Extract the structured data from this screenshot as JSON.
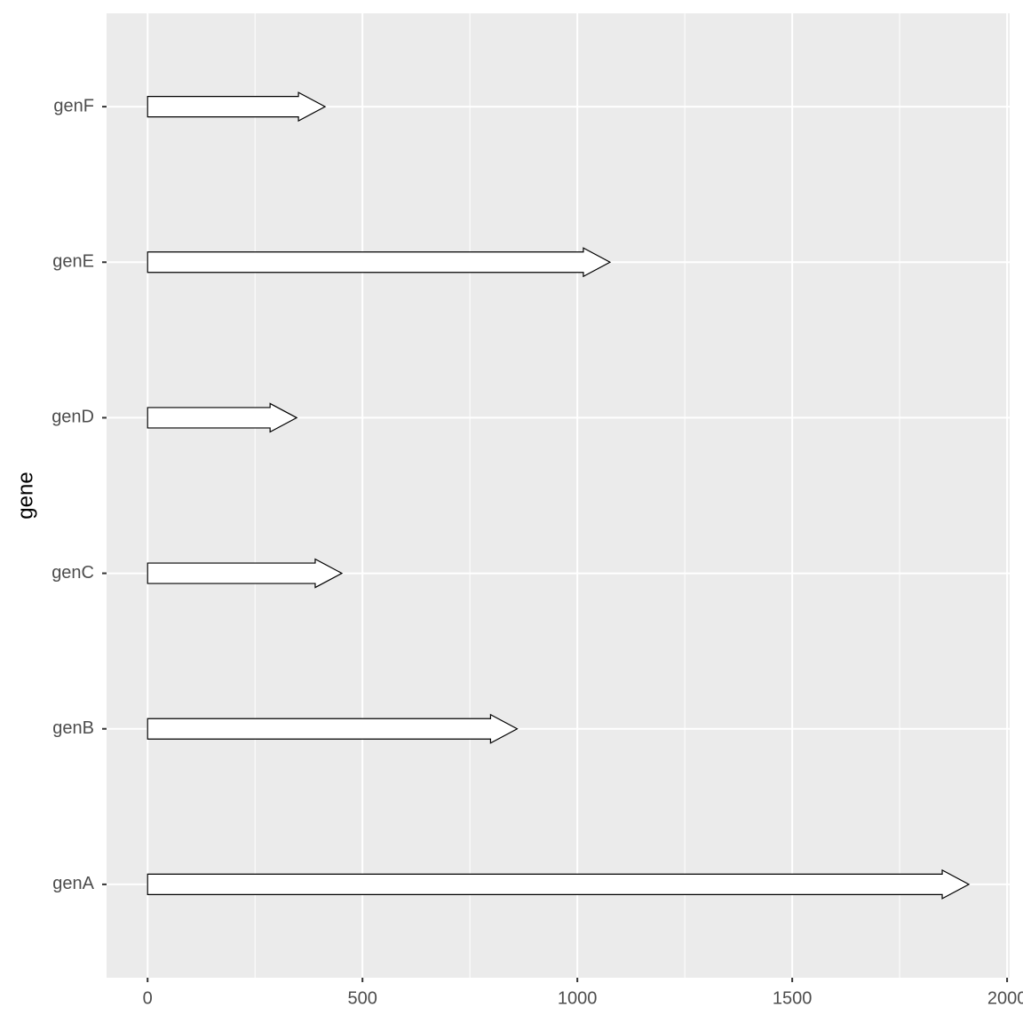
{
  "chart_data": {
    "type": "arrow",
    "y_label": "gene",
    "categories": [
      "genA",
      "genB",
      "genC",
      "genD",
      "genE",
      "genF"
    ],
    "starts": [
      0,
      0,
      0,
      0,
      0,
      0
    ],
    "values": [
      1911,
      860,
      452,
      347,
      1076,
      413
    ],
    "color": "#ffffff",
    "xlim": [
      -95.5,
      2006
    ],
    "xticks": [
      0,
      500,
      1000,
      1500,
      2000
    ],
    "minor_grid": [
      250,
      750,
      1250,
      1750
    ],
    "grid": true
  }
}
